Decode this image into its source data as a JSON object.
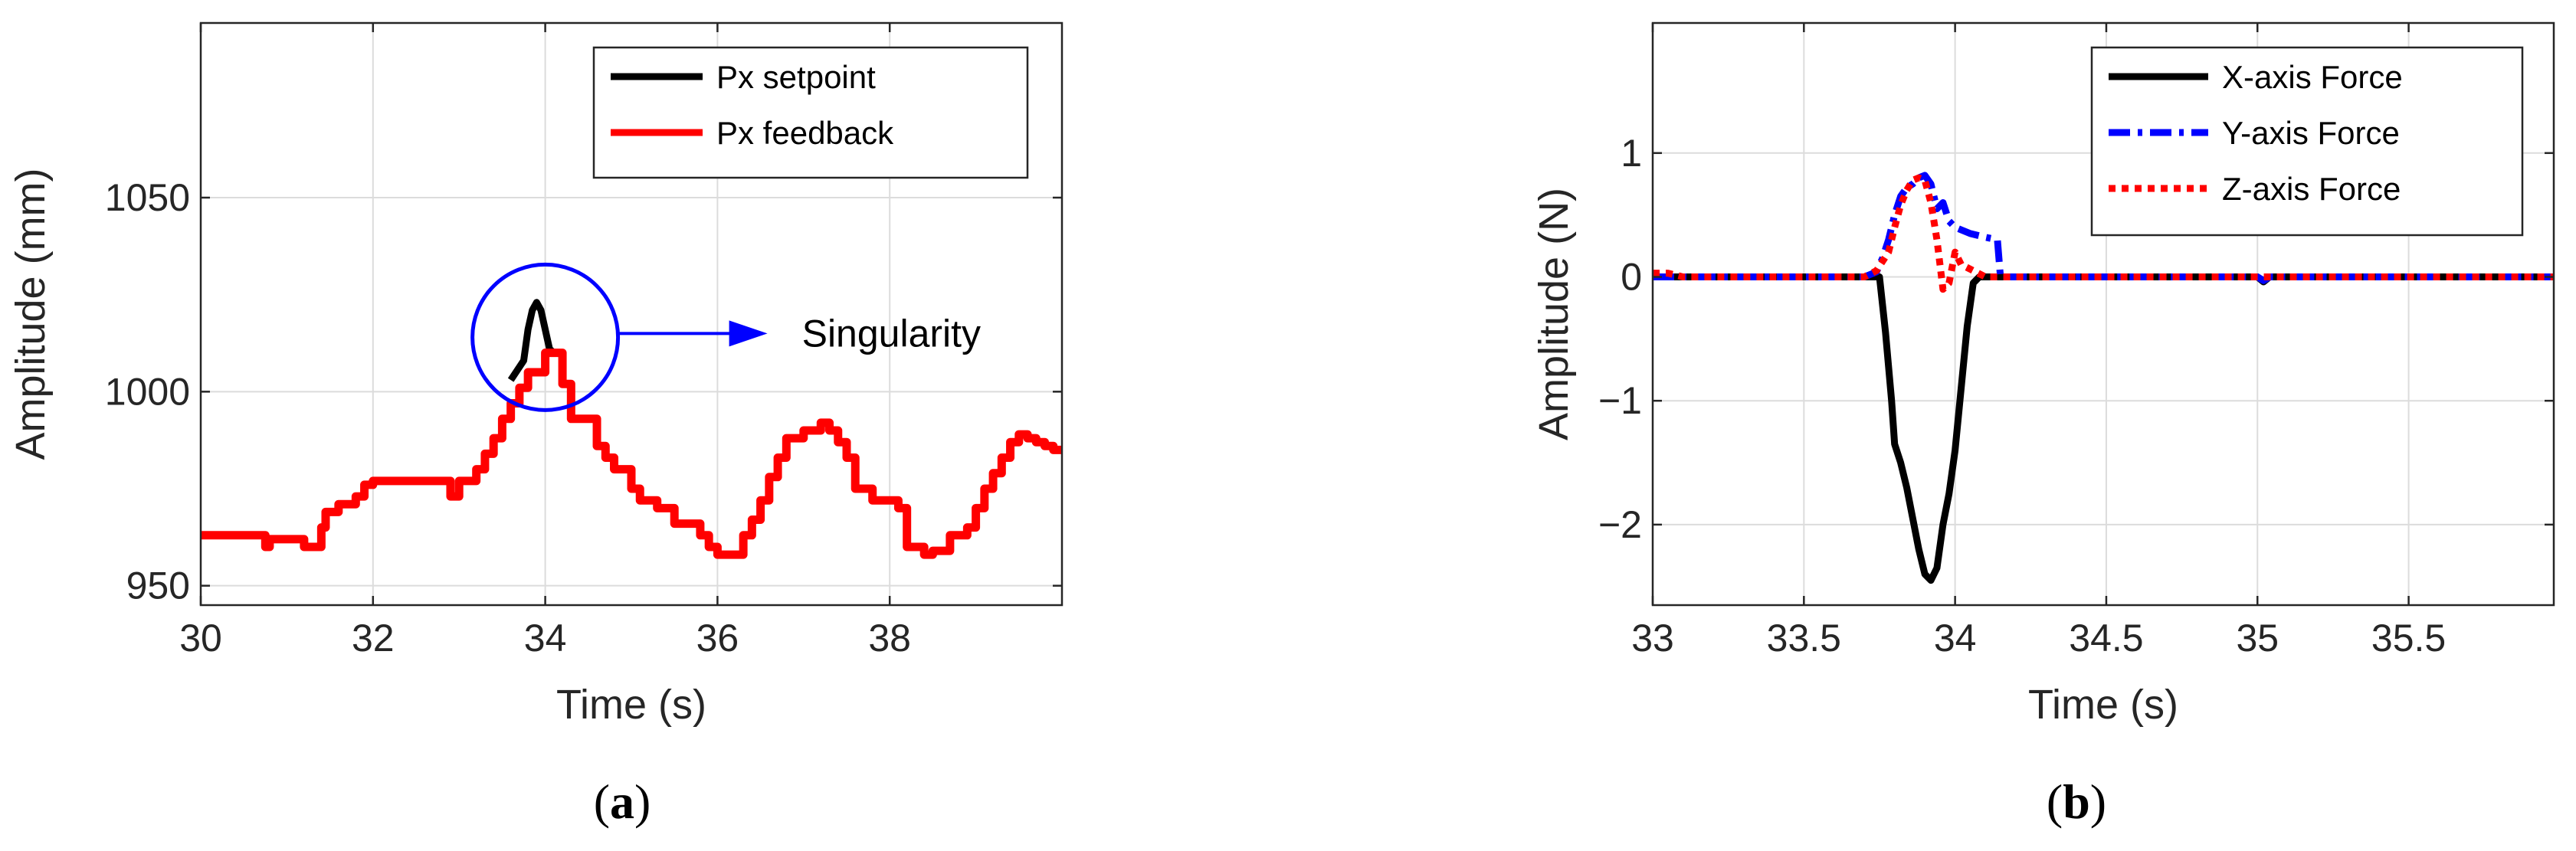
{
  "panels": [
    {
      "label_text": "(a)",
      "label_letter": "a"
    },
    {
      "label_text": "(b)",
      "label_letter": "b"
    }
  ],
  "chart_data": [
    {
      "type": "line",
      "xlabel": "Time (s)",
      "ylabel": "Amplitude (mm)",
      "xlim": [
        30,
        40
      ],
      "ylim": [
        945,
        1095
      ],
      "xticks": [
        30,
        32,
        34,
        36,
        38
      ],
      "xtick_labels": [
        "30",
        "32",
        "34",
        "36",
        "38"
      ],
      "yticks": [
        950,
        1000,
        1050
      ],
      "ytick_labels": [
        "950",
        "1000",
        "1050"
      ],
      "grid": true,
      "legend_position": "top-right",
      "annotation": {
        "text": "Singularity",
        "x": 34.0,
        "y": 1014
      },
      "series": [
        {
          "name": "Px setpoint",
          "color": "#000000",
          "style": "solid",
          "x": [
            33.6,
            33.75,
            33.8,
            33.85,
            33.9,
            33.95,
            34.0,
            34.05,
            34.1,
            34.2
          ],
          "y": [
            1003,
            1008,
            1016,
            1021,
            1023,
            1021,
            1016,
            1011,
            1010,
            1010
          ]
        },
        {
          "name": "Px feedback",
          "color": "#ff0000",
          "style": "solid",
          "x": [
            30.0,
            30.7,
            30.75,
            30.8,
            31.0,
            31.2,
            31.3,
            31.4,
            31.45,
            31.6,
            31.8,
            31.9,
            32.0,
            32.2,
            32.8,
            32.9,
            33.0,
            33.1,
            33.2,
            33.3,
            33.4,
            33.5,
            33.6,
            33.7,
            33.8,
            34.0,
            34.1,
            34.2,
            34.3,
            34.5,
            34.6,
            34.7,
            34.8,
            35.0,
            35.1,
            35.3,
            35.5,
            35.6,
            35.8,
            35.9,
            36.0,
            36.2,
            36.3,
            36.4,
            36.5,
            36.6,
            36.7,
            36.8,
            37.0,
            37.2,
            37.3,
            37.4,
            37.5,
            37.6,
            37.8,
            38.0,
            38.1,
            38.2,
            38.4,
            38.5,
            38.6,
            38.7,
            38.9,
            39.0,
            39.1,
            39.2,
            39.3,
            39.4,
            39.5,
            39.6,
            39.7,
            39.8,
            39.9,
            40.0
          ],
          "y": [
            963,
            963,
            960,
            962,
            962,
            960,
            960,
            965,
            969,
            971,
            973,
            976,
            977,
            977,
            977,
            973,
            977,
            977,
            980,
            984,
            988,
            993,
            997,
            1001,
            1005,
            1010,
            1010,
            1002,
            993,
            993,
            986,
            983,
            980,
            975,
            972,
            970,
            966,
            966,
            963,
            960,
            958,
            958,
            963,
            967,
            972,
            978,
            983,
            988,
            990,
            992,
            990,
            987,
            983,
            975,
            972,
            972,
            970,
            960,
            958,
            959,
            959,
            963,
            965,
            970,
            975,
            979,
            983,
            987,
            989,
            988,
            987,
            986,
            985,
            985
          ]
        }
      ]
    },
    {
      "type": "line",
      "xlabel": "Time (s)",
      "ylabel": "Amplitude (N)",
      "xlim": [
        33,
        35.98
      ],
      "ylim": [
        -2.65,
        2.05
      ],
      "xticks": [
        33,
        33.5,
        34,
        34.5,
        35,
        35.5
      ],
      "xtick_labels": [
        "33",
        "33.5",
        "34",
        "34.5",
        "35",
        "35.5"
      ],
      "yticks": [
        -2,
        -1,
        0,
        1
      ],
      "ytick_labels": [
        "−2",
        "−1",
        "0",
        "1"
      ],
      "grid": true,
      "legend_position": "top-right",
      "series": [
        {
          "name": "X-axis Force",
          "color": "#000000",
          "style": "solid",
          "x": [
            33.0,
            33.75,
            33.77,
            33.79,
            33.8,
            33.82,
            33.84,
            33.86,
            33.88,
            33.9,
            33.92,
            33.94,
            33.96,
            33.98,
            34.0,
            34.02,
            34.04,
            34.06,
            34.08,
            34.15,
            35.0,
            35.02,
            35.04,
            35.98
          ],
          "y": [
            0.0,
            0.0,
            -0.45,
            -1.0,
            -1.35,
            -1.5,
            -1.7,
            -1.95,
            -2.2,
            -2.4,
            -2.45,
            -2.35,
            -2.0,
            -1.75,
            -1.4,
            -0.9,
            -0.4,
            -0.05,
            0.0,
            0.0,
            0.0,
            -0.04,
            0.0,
            0.0
          ]
        },
        {
          "name": "Y-axis Force",
          "color": "#0000ff",
          "style": "dashdot",
          "x": [
            33.0,
            33.7,
            33.74,
            33.76,
            33.78,
            33.8,
            33.82,
            33.84,
            33.86,
            33.88,
            33.9,
            33.92,
            33.94,
            33.96,
            33.98,
            34.0,
            34.05,
            34.1,
            34.14,
            34.15,
            35.0,
            35.02,
            35.04,
            35.98
          ],
          "y": [
            0.0,
            0.0,
            0.04,
            0.15,
            0.3,
            0.5,
            0.65,
            0.72,
            0.75,
            0.8,
            0.82,
            0.75,
            0.55,
            0.6,
            0.45,
            0.4,
            0.35,
            0.32,
            0.3,
            0.0,
            0.0,
            -0.03,
            0.0,
            0.0
          ]
        },
        {
          "name": "Z-axis Force",
          "color": "#ff0000",
          "style": "dotted",
          "x": [
            33.0,
            33.05,
            33.1,
            33.7,
            33.74,
            33.78,
            33.8,
            33.82,
            33.84,
            33.86,
            33.88,
            33.9,
            33.92,
            33.94,
            33.96,
            33.98,
            34.0,
            34.02,
            34.06,
            34.1,
            35.98
          ],
          "y": [
            0.03,
            0.03,
            0.0,
            0.0,
            0.05,
            0.2,
            0.4,
            0.58,
            0.7,
            0.78,
            0.8,
            0.78,
            0.6,
            0.3,
            -0.1,
            -0.05,
            0.2,
            0.1,
            0.05,
            0.0,
            0.0
          ]
        }
      ]
    }
  ]
}
